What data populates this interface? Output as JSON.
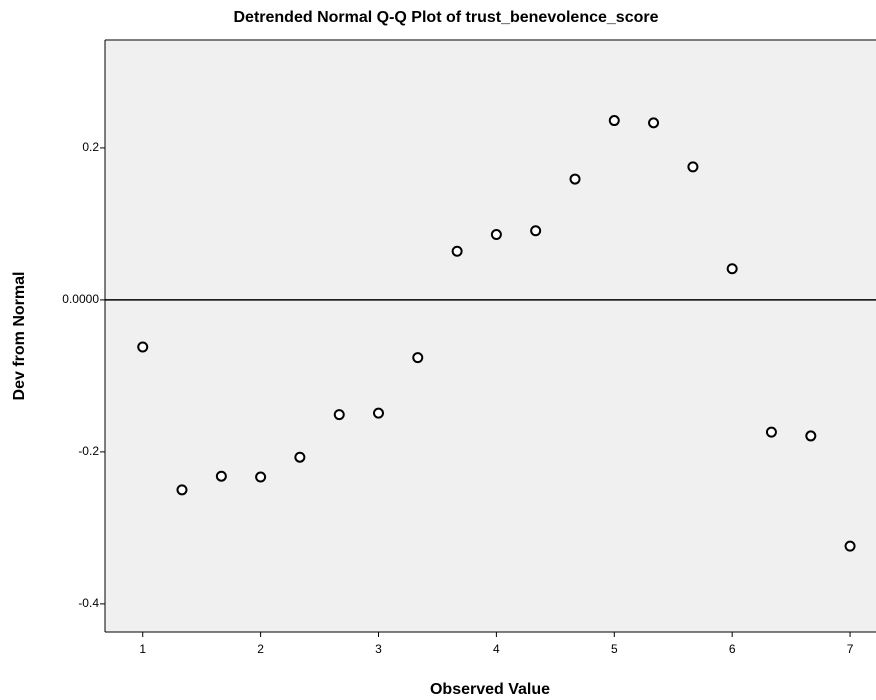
{
  "chart_data": {
    "type": "scatter",
    "title": "Detrended Normal Q-Q Plot of trust_benevolence_score",
    "x_label": "Observed Value",
    "y_label": "Dev from Normal",
    "x": [
      1,
      1.333,
      1.667,
      2,
      2.333,
      2.667,
      3,
      3.333,
      3.667,
      4,
      4.333,
      4.667,
      5,
      5.333,
      5.667,
      6,
      6.333,
      6.667,
      7
    ],
    "values": [
      -0.062,
      -0.25,
      -0.232,
      -0.233,
      -0.207,
      -0.151,
      -0.149,
      -0.076,
      0.064,
      0.086,
      0.091,
      0.159,
      0.236,
      0.233,
      0.175,
      0.041,
      -0.174,
      -0.179,
      -0.324
    ],
    "xlim": [
      0.68,
      7.22
    ],
    "xticks": [
      1,
      2,
      3,
      4,
      5,
      6,
      7
    ],
    "ylim": [
      -0.437,
      0.342
    ],
    "yticks": [
      0.2,
      {
        "value": 0,
        "label": "0.0000"
      },
      -0.2,
      -0.4
    ],
    "plot_background": "#f0f0f0",
    "marker_color": "#000000"
  }
}
